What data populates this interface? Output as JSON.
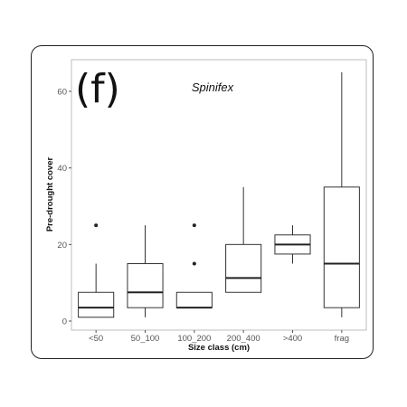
{
  "chart_data": {
    "type": "boxplot",
    "panel_label": "(f)",
    "title": "Spinifex",
    "xlabel": "Size class (cm)",
    "ylabel": "Pre-drought cover",
    "ylim": [
      -1,
      68
    ],
    "yticks": [
      0,
      20,
      40,
      60
    ],
    "categories": [
      "<50",
      "50_100",
      "100_200",
      "200_400",
      ">400",
      "frag"
    ],
    "boxes": [
      {
        "category": "<50",
        "whisker_low": 1,
        "q1": 1,
        "median": 3.5,
        "q3": 7.5,
        "whisker_high": 15,
        "outliers": [
          25
        ]
      },
      {
        "category": "50_100",
        "whisker_low": 1,
        "q1": 3.5,
        "median": 7.5,
        "q3": 15,
        "whisker_high": 25,
        "outliers": []
      },
      {
        "category": "100_200",
        "whisker_low": 3.5,
        "q1": 3.5,
        "median": 3.5,
        "q3": 7.5,
        "whisker_high": 7.5,
        "outliers": [
          15,
          25
        ]
      },
      {
        "category": "200_400",
        "whisker_low": 7.5,
        "q1": 7.5,
        "median": 11.25,
        "q3": 20,
        "whisker_high": 35,
        "outliers": []
      },
      {
        "category": ">400",
        "whisker_low": 15,
        "q1": 17.5,
        "median": 20,
        "q3": 22.5,
        "whisker_high": 25,
        "outliers": []
      },
      {
        "category": "frag",
        "whisker_low": 1,
        "q1": 3.5,
        "median": 15,
        "q3": 35,
        "whisker_high": 65,
        "outliers": []
      }
    ],
    "grid": false
  }
}
